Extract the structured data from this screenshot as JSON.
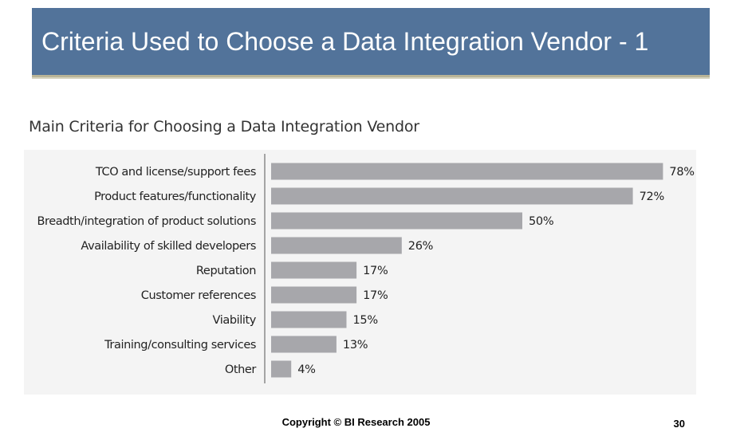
{
  "slide": {
    "title": "Criteria Used to Choose a Data Integration Vendor - 1",
    "copyright": "Copyright © BI Research 2005",
    "page_number": "30"
  },
  "colors": {
    "title_bar": "#52739a",
    "bar": "#a7a7ab",
    "chart_background": "#f4f4f4"
  },
  "chart_data": {
    "type": "bar",
    "orientation": "horizontal",
    "title": "Main Criteria for Choosing a Data Integration Vendor",
    "categories": [
      "TCO and license/support fees",
      "Product features/functionality",
      "Breadth/integration of product solutions",
      "Availability of skilled developers",
      "Reputation",
      "Customer references",
      "Viability",
      "Training/consulting services",
      "Other"
    ],
    "values": [
      78,
      72,
      50,
      26,
      17,
      17,
      15,
      13,
      4
    ],
    "value_labels": [
      "78%",
      "72%",
      "50%",
      "26%",
      "17%",
      "17%",
      "15%",
      "13%",
      "4%"
    ],
    "xlim": [
      0,
      100
    ],
    "grid": false,
    "legend": false
  }
}
